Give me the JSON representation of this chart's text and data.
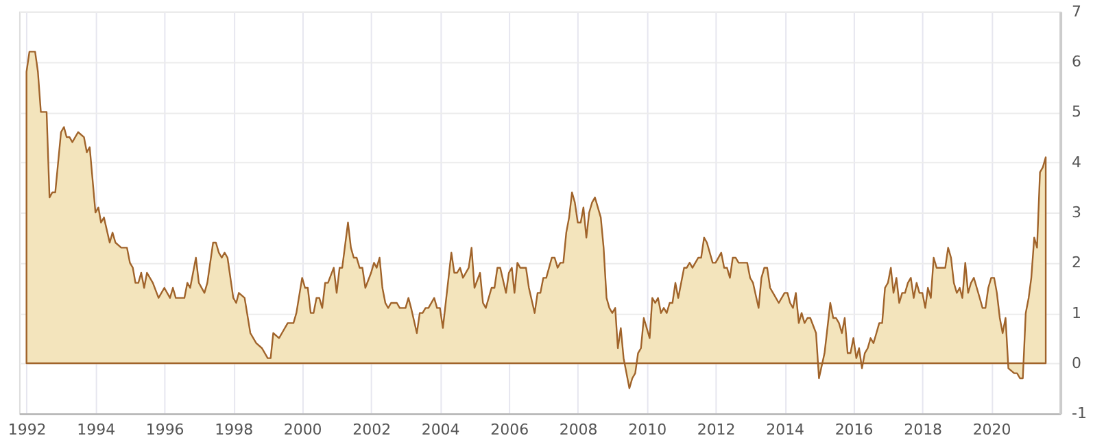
{
  "chart_data": {
    "type": "area",
    "xlim": [
      "1991-10-15",
      "2022-01-01"
    ],
    "xticks": [
      "1992",
      "1994",
      "1996",
      "1998",
      "2000",
      "2002",
      "2004",
      "2006",
      "2008",
      "2010",
      "2012",
      "2014",
      "2016",
      "2018",
      "2020"
    ],
    "ylim": [
      -1,
      7
    ],
    "yticks": [
      -1,
      0,
      1,
      2,
      3,
      4,
      5,
      6,
      7
    ],
    "grid": true,
    "marker": "none",
    "line_style": "solid",
    "series": [
      {
        "color": "#f3e4bc",
        "x": [
          "1992-01",
          "1992-02",
          "1992-04",
          "1992-05",
          "1992-06",
          "1992-08",
          "1992-09",
          "1992-10",
          "1992-11",
          "1993-01",
          "1993-02",
          "1993-03",
          "1993-04",
          "1993-05",
          "1993-07",
          "1993-09",
          "1993-10",
          "1993-11",
          "1994-01",
          "1994-02",
          "1994-03",
          "1994-04",
          "1994-06",
          "1994-07",
          "1994-08",
          "1994-10",
          "1994-12",
          "1995-01",
          "1995-02",
          "1995-03",
          "1995-04",
          "1995-05",
          "1995-06",
          "1995-07",
          "1995-09",
          "1995-11",
          "1996-01",
          "1996-03",
          "1996-04",
          "1996-05",
          "1996-08",
          "1996-09",
          "1996-10",
          "1996-12",
          "1997-01",
          "1997-03",
          "1997-04",
          "1997-06",
          "1997-07",
          "1997-08",
          "1997-09",
          "1997-10",
          "1997-11",
          "1998-01",
          "1998-02",
          "1998-03",
          "1998-05",
          "1998-07",
          "1998-09",
          "1998-11",
          "1999-01",
          "1999-02",
          "1999-03",
          "1999-05",
          "1999-06",
          "1999-08",
          "1999-10",
          "1999-11",
          "2000-01",
          "2000-02",
          "2000-03",
          "2000-04",
          "2000-05",
          "2000-06",
          "2000-07",
          "2000-08",
          "2000-09",
          "2000-10",
          "2000-12",
          "2001-01",
          "2001-02",
          "2001-03",
          "2001-05",
          "2001-06",
          "2001-07",
          "2001-08",
          "2001-09",
          "2001-10",
          "2001-11",
          "2002-01",
          "2002-02",
          "2002-03",
          "2002-04",
          "2002-05",
          "2002-06",
          "2002-07",
          "2002-08",
          "2002-10",
          "2002-11",
          "2003-01",
          "2003-02",
          "2003-03",
          "2003-05",
          "2003-06",
          "2003-07",
          "2003-08",
          "2003-09",
          "2003-11",
          "2003-12",
          "2004-01",
          "2004-02",
          "2004-04",
          "2004-05",
          "2004-06",
          "2004-07",
          "2004-08",
          "2004-09",
          "2004-11",
          "2004-12",
          "2005-01",
          "2005-03",
          "2005-04",
          "2005-05",
          "2005-07",
          "2005-08",
          "2005-09",
          "2005-10",
          "2005-12",
          "2006-01",
          "2006-02",
          "2006-03",
          "2006-04",
          "2006-05",
          "2006-07",
          "2006-08",
          "2006-10",
          "2006-11",
          "2006-12",
          "2007-01",
          "2007-02",
          "2007-04",
          "2007-05",
          "2007-06",
          "2007-07",
          "2007-08",
          "2007-09",
          "2007-10",
          "2007-11",
          "2007-12",
          "2008-01",
          "2008-02",
          "2008-03",
          "2008-04",
          "2008-05",
          "2008-06",
          "2008-07",
          "2008-08",
          "2008-09",
          "2008-10",
          "2008-11",
          "2008-12",
          "2009-01",
          "2009-02",
          "2009-03",
          "2009-04",
          "2009-05",
          "2009-07",
          "2009-08",
          "2009-09",
          "2009-10",
          "2009-11",
          "2009-12",
          "2010-02",
          "2010-03",
          "2010-04",
          "2010-05",
          "2010-06",
          "2010-07",
          "2010-08",
          "2010-09",
          "2010-10",
          "2010-11",
          "2010-12",
          "2011-01",
          "2011-02",
          "2011-03",
          "2011-04",
          "2011-05",
          "2011-07",
          "2011-08",
          "2011-09",
          "2011-10",
          "2011-12",
          "2012-01",
          "2012-03",
          "2012-04",
          "2012-05",
          "2012-06",
          "2012-07",
          "2012-08",
          "2012-09",
          "2012-12",
          "2013-01",
          "2013-02",
          "2013-04",
          "2013-05",
          "2013-06",
          "2013-07",
          "2013-08",
          "2013-09",
          "2013-11",
          "2014-01",
          "2014-02",
          "2014-03",
          "2014-04",
          "2014-05",
          "2014-06",
          "2014-07",
          "2014-08",
          "2014-09",
          "2014-10",
          "2014-12",
          "2015-01",
          "2015-03",
          "2015-05",
          "2015-06",
          "2015-07",
          "2015-08",
          "2015-09",
          "2015-10",
          "2015-11",
          "2015-12",
          "2016-01",
          "2016-02",
          "2016-03",
          "2016-04",
          "2016-05",
          "2016-06",
          "2016-07",
          "2016-08",
          "2016-09",
          "2016-10",
          "2016-11",
          "2016-12",
          "2017-01",
          "2017-02",
          "2017-03",
          "2017-04",
          "2017-05",
          "2017-06",
          "2017-07",
          "2017-08",
          "2017-09",
          "2017-10",
          "2017-11",
          "2017-12",
          "2018-01",
          "2018-02",
          "2018-03",
          "2018-04",
          "2018-05",
          "2018-06",
          "2018-09",
          "2018-10",
          "2018-11",
          "2018-12",
          "2019-01",
          "2019-02",
          "2019-03",
          "2019-04",
          "2019-05",
          "2019-06",
          "2019-07",
          "2019-08",
          "2019-09",
          "2019-10",
          "2019-11",
          "2019-12",
          "2020-01",
          "2020-02",
          "2020-03",
          "2020-04",
          "2020-05",
          "2020-06",
          "2020-07",
          "2020-09",
          "2020-10",
          "2020-11",
          "2020-12",
          "2021-01",
          "2021-02",
          "2021-03",
          "2021-04",
          "2021-05",
          "2021-06",
          "2021-07",
          "2021-08"
        ],
        "values": [
          5.8,
          6.2,
          6.2,
          5.8,
          5.0,
          5.0,
          3.3,
          3.4,
          3.4,
          4.6,
          4.7,
          4.5,
          4.5,
          4.4,
          4.6,
          4.5,
          4.2,
          4.3,
          3.0,
          3.1,
          2.8,
          2.9,
          2.4,
          2.6,
          2.4,
          2.3,
          2.3,
          2.0,
          1.9,
          1.6,
          1.6,
          1.8,
          1.5,
          1.8,
          1.6,
          1.3,
          1.5,
          1.3,
          1.5,
          1.3,
          1.3,
          1.6,
          1.5,
          2.1,
          1.6,
          1.4,
          1.6,
          2.4,
          2.4,
          2.2,
          2.1,
          2.2,
          2.1,
          1.3,
          1.2,
          1.4,
          1.3,
          0.6,
          0.4,
          0.3,
          0.1,
          0.1,
          0.6,
          0.5,
          0.6,
          0.8,
          0.8,
          1.0,
          1.7,
          1.5,
          1.5,
          1.0,
          1.0,
          1.3,
          1.3,
          1.1,
          1.6,
          1.6,
          1.9,
          1.4,
          1.9,
          1.9,
          2.8,
          2.3,
          2.1,
          2.1,
          1.9,
          1.9,
          1.5,
          1.8,
          2.0,
          1.9,
          2.1,
          1.5,
          1.2,
          1.1,
          1.2,
          1.2,
          1.1,
          1.1,
          1.3,
          1.1,
          0.6,
          1.0,
          1.0,
          1.1,
          1.1,
          1.3,
          1.1,
          1.1,
          0.7,
          1.7,
          2.2,
          1.8,
          1.8,
          1.9,
          1.7,
          1.9,
          2.3,
          1.5,
          1.8,
          1.2,
          1.1,
          1.5,
          1.5,
          1.9,
          1.9,
          1.4,
          1.8,
          1.9,
          1.4,
          2.0,
          1.9,
          1.9,
          1.5,
          1.0,
          1.4,
          1.4,
          1.7,
          1.7,
          2.1,
          2.1,
          1.9,
          2.0,
          2.0,
          2.6,
          2.9,
          3.4,
          3.2,
          2.8,
          2.8,
          3.1,
          2.5,
          3.0,
          3.2,
          3.3,
          3.1,
          2.9,
          2.3,
          1.3,
          1.1,
          1.0,
          1.1,
          0.3,
          0.7,
          0.1,
          -0.5,
          -0.3,
          -0.2,
          0.2,
          0.3,
          0.9,
          0.5,
          1.3,
          1.2,
          1.3,
          1.0,
          1.1,
          1.0,
          1.2,
          1.2,
          1.6,
          1.3,
          1.6,
          1.9,
          1.9,
          2.0,
          1.9,
          2.1,
          2.1,
          2.5,
          2.4,
          2.0,
          2.0,
          2.2,
          1.9,
          1.9,
          1.7,
          2.1,
          2.1,
          2.0,
          2.0,
          1.7,
          1.6,
          1.1,
          1.7,
          1.9,
          1.9,
          1.5,
          1.4,
          1.2,
          1.4,
          1.4,
          1.2,
          1.1,
          1.4,
          0.8,
          1.0,
          0.8,
          0.9,
          0.9,
          0.6,
          -0.3,
          0.2,
          1.2,
          0.9,
          0.9,
          0.8,
          0.6,
          0.9,
          0.2,
          0.2,
          0.5,
          0.1,
          0.3,
          -0.1,
          0.2,
          0.3,
          0.5,
          0.4,
          0.6,
          0.8,
          0.8,
          1.5,
          1.6,
          1.9,
          1.4,
          1.7,
          1.2,
          1.4,
          1.4,
          1.6,
          1.7,
          1.3,
          1.6,
          1.4,
          1.4,
          1.1,
          1.5,
          1.3,
          2.1,
          1.9,
          1.9,
          2.3,
          2.1,
          1.6,
          1.4,
          1.5,
          1.3,
          2.0,
          1.4,
          1.6,
          1.7,
          1.5,
          1.3,
          1.1,
          1.1,
          1.5,
          1.7,
          1.7,
          1.4,
          0.9,
          0.6,
          0.9,
          -0.1,
          -0.2,
          -0.2,
          -0.3,
          -0.3,
          1.0,
          1.3,
          1.7,
          2.5,
          2.3,
          3.8,
          3.9,
          4.1
        ]
      }
    ]
  }
}
